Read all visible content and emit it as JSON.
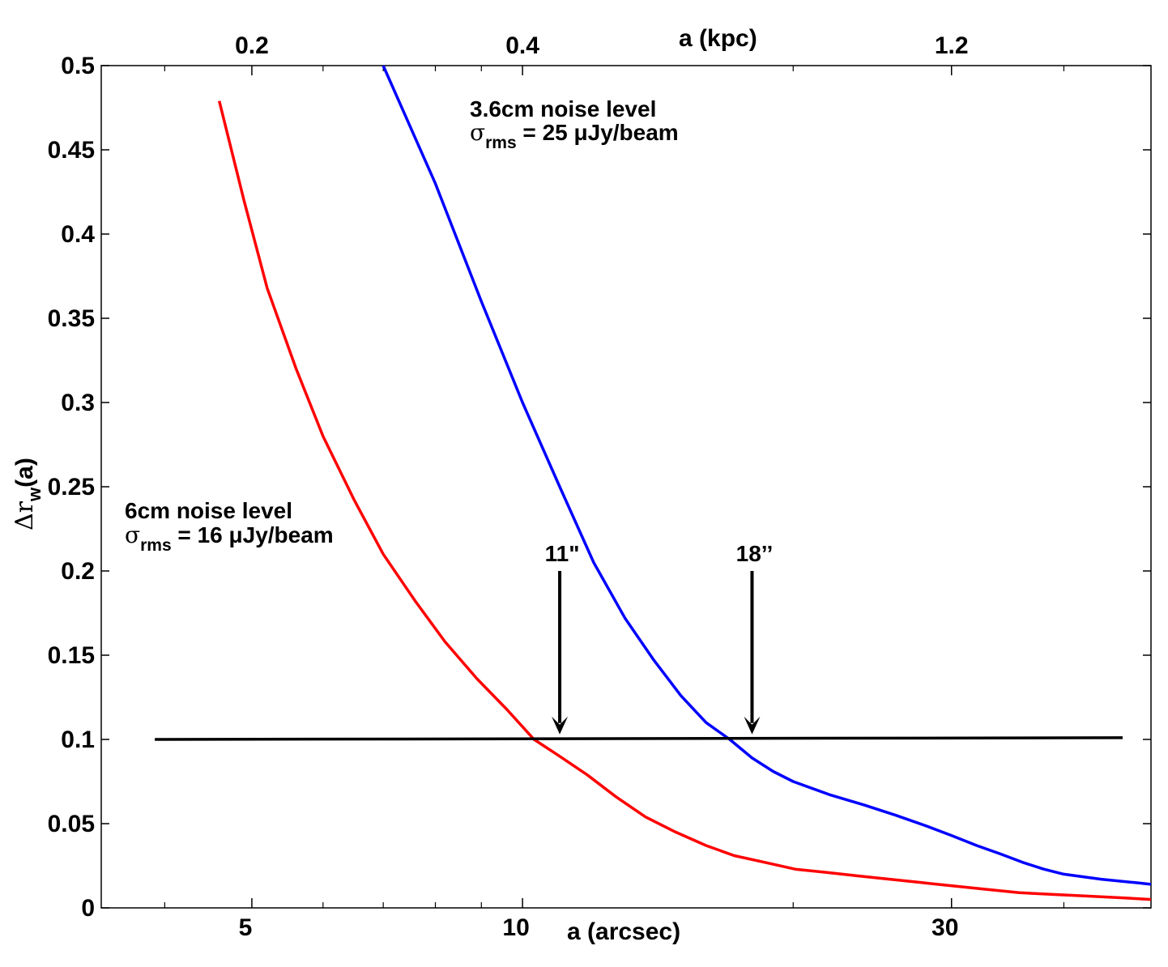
{
  "chart_data": {
    "type": "line",
    "xscale": "log",
    "xlim": [
      3.4,
      50
    ],
    "ylim": [
      0,
      0.5
    ],
    "xlabel": "a (arcsec)",
    "ylabel_main": "Δr",
    "ylabel_sub": "w",
    "ylabel_suffix": "(a)",
    "top_axis_label": "a (kpc)",
    "x_ticks": [
      {
        "value": 5,
        "label": "5"
      },
      {
        "value": 10,
        "label": "10"
      },
      {
        "value": 30,
        "label": "30"
      }
    ],
    "x_minor_ticks": [
      4,
      6,
      7,
      8,
      9,
      20,
      40
    ],
    "top_ticks": [
      {
        "x": 5,
        "label": "0.2"
      },
      {
        "x": 10,
        "label": "0.4"
      },
      {
        "x": 30,
        "label": "1.2"
      }
    ],
    "y_ticks": [
      0,
      0.05,
      0.1,
      0.15,
      0.2,
      0.25,
      0.3,
      0.35,
      0.4,
      0.45,
      0.5
    ],
    "y_tick_labels": [
      "0",
      "0.05",
      "0.1",
      "0.15",
      "0.2",
      "0.25",
      "0.3",
      "0.35",
      "0.4",
      "0.45",
      "0.5"
    ],
    "series": [
      {
        "name": "6cm noise level",
        "color": "#ff0000",
        "x": [
          4.6,
          4.9,
          5.2,
          5.6,
          6.0,
          6.5,
          7.0,
          7.6,
          8.2,
          8.9,
          9.6,
          10.3,
          11.0,
          11.8,
          12.7,
          13.7,
          14.8,
          16.0,
          17.2,
          18.6,
          20.1,
          21.8,
          23.6,
          25.6,
          27.8,
          30.2,
          32.8,
          35.7,
          38.9,
          42.4,
          46.3,
          50.0
        ],
        "y": [
          0.479,
          0.42,
          0.368,
          0.32,
          0.28,
          0.242,
          0.21,
          0.182,
          0.158,
          0.136,
          0.118,
          0.1,
          0.09,
          0.079,
          0.066,
          0.054,
          0.045,
          0.037,
          0.031,
          0.027,
          0.023,
          0.021,
          0.019,
          0.017,
          0.015,
          0.013,
          0.011,
          0.009,
          0.008,
          0.007,
          0.006,
          0.005
        ]
      },
      {
        "name": "3.6cm noise level",
        "color": "#0000ff",
        "x": [
          7.0,
          8.0,
          9.0,
          10.0,
          11.0,
          12.0,
          13.0,
          14.0,
          15.0,
          16.0,
          17.0,
          18.0,
          19.0,
          20.0,
          22.0,
          24.0,
          26.0,
          28.0,
          30.0,
          32.0,
          34.0,
          36.0,
          38.0,
          40.0,
          44.0,
          48.0,
          50.0
        ],
        "y": [
          0.5,
          0.43,
          0.36,
          0.3,
          0.25,
          0.205,
          0.172,
          0.147,
          0.126,
          0.11,
          0.1,
          0.089,
          0.081,
          0.075,
          0.067,
          0.061,
          0.055,
          0.049,
          0.043,
          0.037,
          0.032,
          0.027,
          0.023,
          0.02,
          0.017,
          0.015,
          0.014
        ]
      },
      {
        "name": "threshold",
        "color": "#000000",
        "x": [
          3.9,
          46.5
        ],
        "y": [
          0.1,
          0.101
        ]
      }
    ],
    "annotations": {
      "blue_title": "3.6cm noise level",
      "blue_sigma": "σ",
      "blue_sigma_sub": "rms",
      "blue_sigma_val": " = 25 μJy/beam",
      "red_title": "6cm noise level",
      "red_sigma": "σ",
      "red_sigma_sub": "rms",
      "red_sigma_val": " = 16 μJy/beam",
      "arrow1_label": "11\"",
      "arrow1_x": 11,
      "arrow2_label": "18’’",
      "arrow2_x": 18,
      "arrow_y_top": 0.2,
      "arrow_y_bottom": 0.103
    }
  }
}
